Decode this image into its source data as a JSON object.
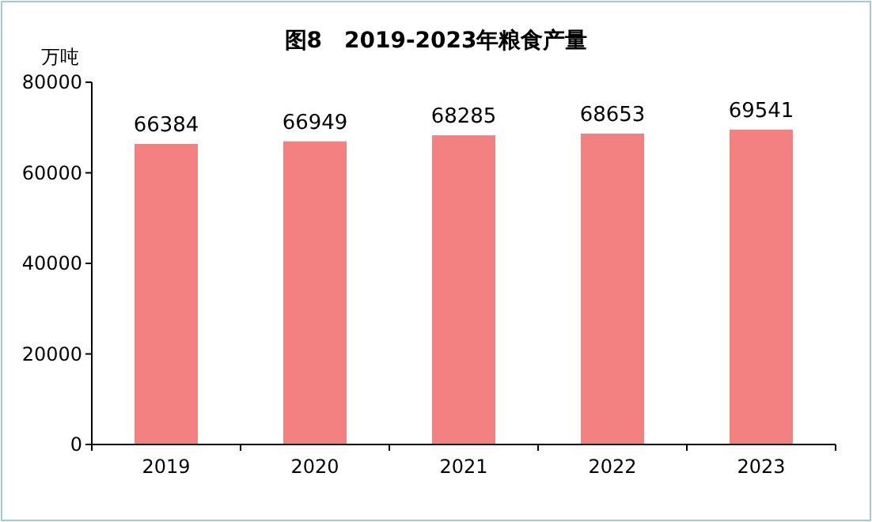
{
  "chart_data": {
    "type": "bar",
    "title": "图8　2019-2023年粮食产量",
    "ylabel": "万吨",
    "categories": [
      "2019",
      "2020",
      "2021",
      "2022",
      "2023"
    ],
    "values": [
      66384,
      66949,
      68285,
      68653,
      69541
    ],
    "color": "#f38181",
    "ylim": [
      0,
      80000
    ],
    "yticks": [
      0,
      20000,
      40000,
      60000,
      80000
    ],
    "data_labels": true,
    "legend": false,
    "grid": false
  }
}
